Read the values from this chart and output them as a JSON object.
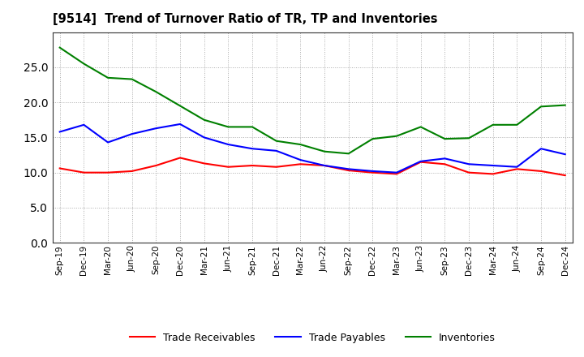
{
  "title": "[9514]  Trend of Turnover Ratio of TR, TP and Inventories",
  "labels": [
    "Sep-19",
    "Dec-19",
    "Mar-20",
    "Jun-20",
    "Sep-20",
    "Dec-20",
    "Mar-21",
    "Jun-21",
    "Sep-21",
    "Dec-21",
    "Mar-22",
    "Jun-22",
    "Sep-22",
    "Dec-22",
    "Mar-23",
    "Jun-23",
    "Sep-23",
    "Dec-23",
    "Mar-24",
    "Jun-24",
    "Sep-24",
    "Dec-24"
  ],
  "trade_receivables": [
    10.6,
    10.0,
    10.0,
    10.2,
    11.0,
    12.1,
    11.3,
    10.8,
    11.0,
    10.8,
    11.2,
    11.0,
    10.3,
    10.0,
    9.8,
    11.5,
    11.2,
    10.0,
    9.8,
    10.5,
    10.2,
    9.6
  ],
  "trade_payables": [
    15.8,
    16.8,
    14.3,
    15.5,
    16.3,
    16.9,
    15.0,
    14.0,
    13.4,
    13.1,
    11.8,
    11.0,
    10.5,
    10.2,
    10.0,
    11.6,
    12.0,
    11.2,
    11.0,
    10.8,
    13.4,
    12.6
  ],
  "inventories": [
    27.8,
    25.5,
    23.5,
    23.3,
    21.5,
    19.5,
    17.5,
    16.5,
    16.5,
    14.5,
    14.0,
    13.0,
    12.7,
    14.8,
    15.2,
    16.5,
    14.8,
    14.9,
    16.8,
    16.8,
    19.4,
    19.6
  ],
  "tr_color": "#ff0000",
  "tp_color": "#0000ff",
  "inv_color": "#008000",
  "ylim": [
    0,
    30
  ],
  "yticks": [
    0.0,
    5.0,
    10.0,
    15.0,
    20.0,
    25.0
  ],
  "legend_labels": [
    "Trade Receivables",
    "Trade Payables",
    "Inventories"
  ],
  "background_color": "#ffffff",
  "grid_color": "#888888"
}
